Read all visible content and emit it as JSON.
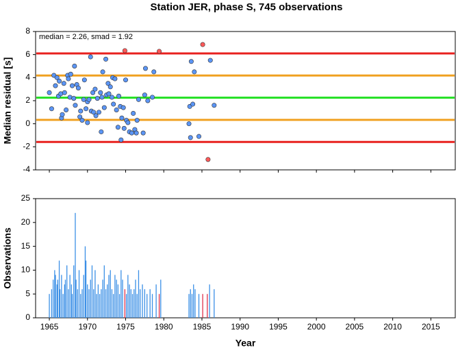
{
  "chart_data": [
    {
      "type": "scatter",
      "title": "Station JER, phase S, 745 observations",
      "ylabel": "Median residual [s]",
      "annotation": "median = 2.26, smad = 1.92",
      "xlim": [
        1963.2,
        2018.2
      ],
      "xticks": [
        1965,
        1970,
        1975,
        1980,
        1985,
        1990,
        1995,
        2000,
        2005,
        2010,
        2015
      ],
      "xtick_labels": false,
      "ylim": [
        -4,
        8
      ],
      "yticks": [
        -4,
        -2,
        0,
        2,
        4,
        6,
        8
      ],
      "hlines": [
        {
          "value": 6.1,
          "color": "#e8201e"
        },
        {
          "value": 4.18,
          "color": "#f0a020"
        },
        {
          "value": 2.26,
          "color": "#22e022"
        },
        {
          "value": 0.34,
          "color": "#f0a020"
        },
        {
          "value": -1.58,
          "color": "#e8201e"
        }
      ],
      "series": [
        {
          "color": "#5b95f5",
          "x": [
            1965.0,
            1965.3,
            1965.6,
            1965.8,
            1966.0,
            1966.2,
            1966.3,
            1966.5,
            1966.6,
            1966.7,
            1966.9,
            1967.0,
            1967.2,
            1967.4,
            1967.5,
            1967.7,
            1967.8,
            1968.0,
            1968.2,
            1968.3,
            1968.4,
            1968.6,
            1968.8,
            1969.0,
            1969.1,
            1969.3,
            1969.5,
            1969.6,
            1969.8,
            1970.0,
            1970.0,
            1970.2,
            1970.4,
            1970.5,
            1970.7,
            1970.8,
            1971.0,
            1971.1,
            1971.3,
            1971.5,
            1971.7,
            1971.8,
            1971.9,
            1972.0,
            1972.2,
            1972.4,
            1972.5,
            1972.7,
            1972.8,
            1973.0,
            1973.2,
            1973.3,
            1973.4,
            1973.6,
            1973.8,
            1974.0,
            1974.1,
            1974.3,
            1974.4,
            1974.5,
            1974.7,
            1974.8,
            1975.0,
            1975.1,
            1975.3,
            1975.5,
            1975.8,
            1976.0,
            1976.2,
            1976.4,
            1976.5,
            1976.7,
            1977.3,
            1977.5,
            1977.6,
            1977.9,
            1978.5,
            1978.7,
            1983.3,
            1983.4,
            1983.5,
            1983.6,
            1983.8,
            1984.0,
            1984.6,
            1986.1,
            1986.6
          ],
          "values": [
            2.7,
            1.3,
            4.2,
            3.3,
            4.0,
            2.4,
            3.7,
            2.6,
            0.5,
            0.8,
            3.5,
            2.7,
            1.2,
            4.2,
            3.9,
            2.3,
            4.3,
            3.3,
            2.2,
            5.0,
            1.6,
            3.4,
            3.1,
            0.6,
            1.1,
            0.3,
            2.1,
            3.8,
            1.3,
            1.9,
            0.1,
            2.1,
            5.8,
            1.1,
            2.7,
            1.0,
            3.0,
            0.7,
            2.2,
            1.0,
            2.7,
            -0.7,
            2.3,
            4.5,
            1.4,
            5.6,
            2.5,
            3.5,
            2.6,
            3.2,
            2.3,
            4.0,
            1.7,
            3.9,
            1.2,
            -0.3,
            2.4,
            1.5,
            -1.4,
            0.5,
            1.4,
            -0.4,
            3.8,
            0.3,
            0.1,
            -0.7,
            -0.8,
            0.9,
            -0.5,
            -0.8,
            0.3,
            2.1,
            -0.8,
            2.5,
            4.8,
            2.0,
            2.3,
            4.5,
            0.0,
            1.5,
            -1.2,
            5.4,
            1.7,
            4.5,
            -1.1,
            5.5,
            1.6
          ]
        },
        {
          "color": "#ff5a5a",
          "x": [
            1974.9,
            1979.4,
            1985.1,
            1985.8
          ],
          "values": [
            6.34,
            6.28,
            6.87,
            -3.1
          ]
        }
      ]
    },
    {
      "type": "bar",
      "xlabel": "Year",
      "ylabel": "Observations",
      "xlim": [
        1963.2,
        2018.2
      ],
      "xticks": [
        1965,
        1970,
        1975,
        1980,
        1985,
        1990,
        1995,
        2000,
        2005,
        2010,
        2015
      ],
      "ylim": [
        0,
        25
      ],
      "yticks": [
        0,
        5,
        10,
        15,
        20,
        25
      ],
      "series": [
        {
          "color": "#3a8fe6",
          "x": [
            1965.0,
            1965.3,
            1965.5,
            1965.7,
            1965.8,
            1966.0,
            1966.1,
            1966.3,
            1966.4,
            1966.6,
            1966.8,
            1967.0,
            1967.1,
            1967.3,
            1967.5,
            1967.7,
            1967.9,
            1968.0,
            1968.2,
            1968.4,
            1968.5,
            1968.7,
            1968.9,
            1969.1,
            1969.3,
            1969.5,
            1969.7,
            1969.8,
            1970.0,
            1970.2,
            1970.4,
            1970.6,
            1970.8,
            1971.0,
            1971.2,
            1971.4,
            1971.6,
            1971.8,
            1972.0,
            1972.2,
            1972.4,
            1972.6,
            1972.8,
            1973.0,
            1973.2,
            1973.4,
            1973.6,
            1973.8,
            1974.0,
            1974.2,
            1974.4,
            1974.6,
            1975.1,
            1975.3,
            1975.5,
            1975.7,
            1975.9,
            1976.1,
            1976.3,
            1976.5,
            1976.7,
            1976.9,
            1977.2,
            1977.5,
            1977.8,
            1978.2,
            1978.5,
            1979.0,
            1979.6,
            1983.3,
            1983.5,
            1983.7,
            1983.9,
            1984.1,
            1984.6,
            1986.0,
            1986.6
          ],
          "values": [
            5,
            6,
            8,
            10,
            9,
            7,
            8,
            12,
            6,
            9,
            5,
            7,
            8,
            11,
            6,
            9,
            7,
            5,
            11,
            22,
            8,
            6,
            10,
            5,
            6,
            9,
            15,
            12,
            7,
            6,
            8,
            11,
            6,
            10,
            5,
            7,
            5,
            6,
            8,
            11,
            6,
            7,
            9,
            10,
            6,
            5,
            9,
            8,
            7,
            5,
            10,
            8,
            5,
            9,
            7,
            6,
            5,
            6,
            8,
            5,
            10,
            6,
            7,
            6,
            5,
            6,
            5,
            7,
            8,
            5,
            6,
            5,
            7,
            6,
            5,
            7,
            6
          ]
        },
        {
          "color": "#e0304a",
          "x": [
            1974.9,
            1979.4,
            1985.1,
            1985.7
          ],
          "values": [
            6,
            5,
            5,
            5
          ]
        }
      ]
    }
  ]
}
